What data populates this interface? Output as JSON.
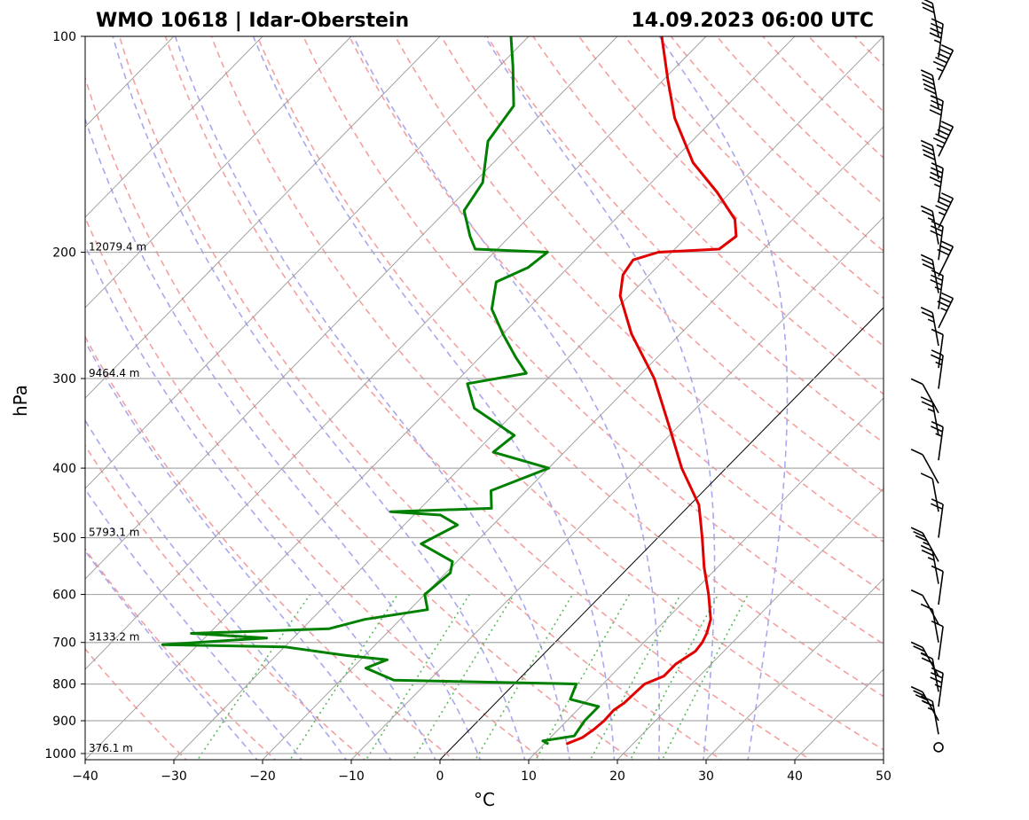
{
  "title_left": "WMO 10618 | Idar-Oberstein",
  "title_right": "14.09.2023 06:00 UTC",
  "colors": {
    "temperature": "#e00000",
    "dewpoint": "#008000",
    "dry_adiabat": "#f5a0a0",
    "moist_adiabat": "#a8a8ee",
    "mixing_ratio": "#5cb85c",
    "isotherm": "#999999",
    "isobar": "#aaaaaa"
  },
  "chart_data": {
    "type": "skew-t",
    "xlabel": "°C",
    "ylabel": "hPa",
    "xlim": [
      -40,
      50
    ],
    "ylim": [
      1020,
      100
    ],
    "y_scale": "log",
    "x_ticks": [
      "−40",
      "−30",
      "−20",
      "−10",
      "0",
      "10",
      "20",
      "30",
      "40",
      "50"
    ],
    "x_tick_values": [
      -40,
      -30,
      -20,
      -10,
      0,
      10,
      20,
      30,
      40,
      50
    ],
    "y_ticks": [
      "100",
      "200",
      "300",
      "400",
      "500",
      "600",
      "700",
      "800",
      "900",
      "1000"
    ],
    "y_tick_values": [
      100,
      200,
      300,
      400,
      500,
      600,
      700,
      800,
      900,
      1000
    ],
    "height_labels": [
      {
        "p": 200,
        "text": "12079.4 m"
      },
      {
        "p": 300,
        "text": "9464.4 m"
      },
      {
        "p": 500,
        "text": "5793.1 m"
      },
      {
        "p": 700,
        "text": "3133.2 m"
      },
      {
        "p": 1000,
        "text": "376.1 m"
      }
    ],
    "temperature": [
      {
        "p": 970,
        "t": 12.5
      },
      {
        "p": 950,
        "t": 13.6
      },
      {
        "p": 925,
        "t": 14.0
      },
      {
        "p": 900,
        "t": 14.2
      },
      {
        "p": 870,
        "t": 14.1
      },
      {
        "p": 850,
        "t": 14.5
      },
      {
        "p": 820,
        "t": 14.6
      },
      {
        "p": 800,
        "t": 14.7
      },
      {
        "p": 780,
        "t": 16.0
      },
      {
        "p": 750,
        "t": 16.0
      },
      {
        "p": 720,
        "t": 16.8
      },
      {
        "p": 700,
        "t": 16.6
      },
      {
        "p": 680,
        "t": 16.1
      },
      {
        "p": 650,
        "t": 15.0
      },
      {
        "p": 600,
        "t": 12.0
      },
      {
        "p": 550,
        "t": 8.5
      },
      {
        "p": 500,
        "t": 5.0
      },
      {
        "p": 450,
        "t": 1.0
      },
      {
        "p": 400,
        "t": -5.0
      },
      {
        "p": 350,
        "t": -11.0
      },
      {
        "p": 300,
        "t": -18.0
      },
      {
        "p": 260,
        "t": -25.5
      },
      {
        "p": 230,
        "t": -31.0
      },
      {
        "p": 215,
        "t": -33.0
      },
      {
        "p": 205,
        "t": -33.5
      },
      {
        "p": 200,
        "t": -31.5
      },
      {
        "p": 198,
        "t": -25.0
      },
      {
        "p": 190,
        "t": -24.5
      },
      {
        "p": 180,
        "t": -26.5
      },
      {
        "p": 165,
        "t": -31.5
      },
      {
        "p": 150,
        "t": -37.5
      },
      {
        "p": 130,
        "t": -44.5
      },
      {
        "p": 115,
        "t": -49.5
      },
      {
        "p": 100,
        "t": -55.0
      }
    ],
    "dewpoint": [
      {
        "p": 970,
        "t": 10.5
      },
      {
        "p": 960,
        "t": 9.5
      },
      {
        "p": 945,
        "t": 12.5
      },
      {
        "p": 900,
        "t": 12.0
      },
      {
        "p": 860,
        "t": 12.0
      },
      {
        "p": 840,
        "t": 8.0
      },
      {
        "p": 800,
        "t": 7.0
      },
      {
        "p": 790,
        "t": -14.0
      },
      {
        "p": 760,
        "t": -18.5
      },
      {
        "p": 740,
        "t": -17.0
      },
      {
        "p": 730,
        "t": -22.0
      },
      {
        "p": 710,
        "t": -30.0
      },
      {
        "p": 705,
        "t": -44.0
      },
      {
        "p": 690,
        "t": -33.0
      },
      {
        "p": 680,
        "t": -42.0
      },
      {
        "p": 670,
        "t": -27.0
      },
      {
        "p": 650,
        "t": -24.0
      },
      {
        "p": 630,
        "t": -18.0
      },
      {
        "p": 600,
        "t": -20.0
      },
      {
        "p": 560,
        "t": -19.5
      },
      {
        "p": 540,
        "t": -20.5
      },
      {
        "p": 510,
        "t": -26.0
      },
      {
        "p": 480,
        "t": -24.0
      },
      {
        "p": 465,
        "t": -27.0
      },
      {
        "p": 460,
        "t": -33.0
      },
      {
        "p": 455,
        "t": -22.0
      },
      {
        "p": 430,
        "t": -24.0
      },
      {
        "p": 400,
        "t": -20.0
      },
      {
        "p": 380,
        "t": -28.0
      },
      {
        "p": 360,
        "t": -27.5
      },
      {
        "p": 330,
        "t": -35.0
      },
      {
        "p": 305,
        "t": -38.5
      },
      {
        "p": 295,
        "t": -33.0
      },
      {
        "p": 280,
        "t": -36.0
      },
      {
        "p": 260,
        "t": -40.0
      },
      {
        "p": 240,
        "t": -44.0
      },
      {
        "p": 220,
        "t": -46.5
      },
      {
        "p": 210,
        "t": -44.5
      },
      {
        "p": 200,
        "t": -44.0
      },
      {
        "p": 198,
        "t": -52.5
      },
      {
        "p": 190,
        "t": -54.5
      },
      {
        "p": 175,
        "t": -58.0
      },
      {
        "p": 160,
        "t": -59.0
      },
      {
        "p": 140,
        "t": -63.0
      },
      {
        "p": 125,
        "t": -64.0
      },
      {
        "p": 110,
        "t": -68.5
      },
      {
        "p": 100,
        "t": -72.0
      }
    ],
    "wind_barbs": [
      {
        "p": 980,
        "knots": 0
      },
      {
        "p": 940,
        "knots": 15
      },
      {
        "p": 900,
        "knots": 25
      },
      {
        "p": 860,
        "knots": 25
      },
      {
        "p": 820,
        "knots": 20
      },
      {
        "p": 780,
        "knots": 15
      },
      {
        "p": 740,
        "knots": 10
      },
      {
        "p": 700,
        "knots": 10
      },
      {
        "p": 660,
        "knots": 10
      },
      {
        "p": 620,
        "knots": 10
      },
      {
        "p": 580,
        "knots": 15
      },
      {
        "p": 540,
        "knots": 25
      },
      {
        "p": 500,
        "knots": 20
      },
      {
        "p": 460,
        "knots": 10
      },
      {
        "p": 420,
        "knots": 10
      },
      {
        "p": 390,
        "knots": 15
      },
      {
        "p": 360,
        "knots": 15
      },
      {
        "p": 335,
        "knots": 10
      },
      {
        "p": 310,
        "knots": 15
      },
      {
        "p": 290,
        "knots": 10
      },
      {
        "p": 270,
        "knots": 15
      },
      {
        "p": 255,
        "knots": 25
      },
      {
        "p": 240,
        "knots": 25
      },
      {
        "p": 228,
        "knots": 30
      },
      {
        "p": 216,
        "knots": 30
      },
      {
        "p": 205,
        "knots": 30
      },
      {
        "p": 195,
        "knots": 15
      },
      {
        "p": 185,
        "knots": 35
      },
      {
        "p": 170,
        "knots": 35
      },
      {
        "p": 158,
        "knots": 40
      },
      {
        "p": 147,
        "knots": 45
      },
      {
        "p": 137,
        "knots": 40
      },
      {
        "p": 126,
        "knots": 45
      },
      {
        "p": 115,
        "knots": 45
      },
      {
        "p": 107,
        "knots": 35
      },
      {
        "p": 100,
        "knots": 30
      }
    ]
  }
}
